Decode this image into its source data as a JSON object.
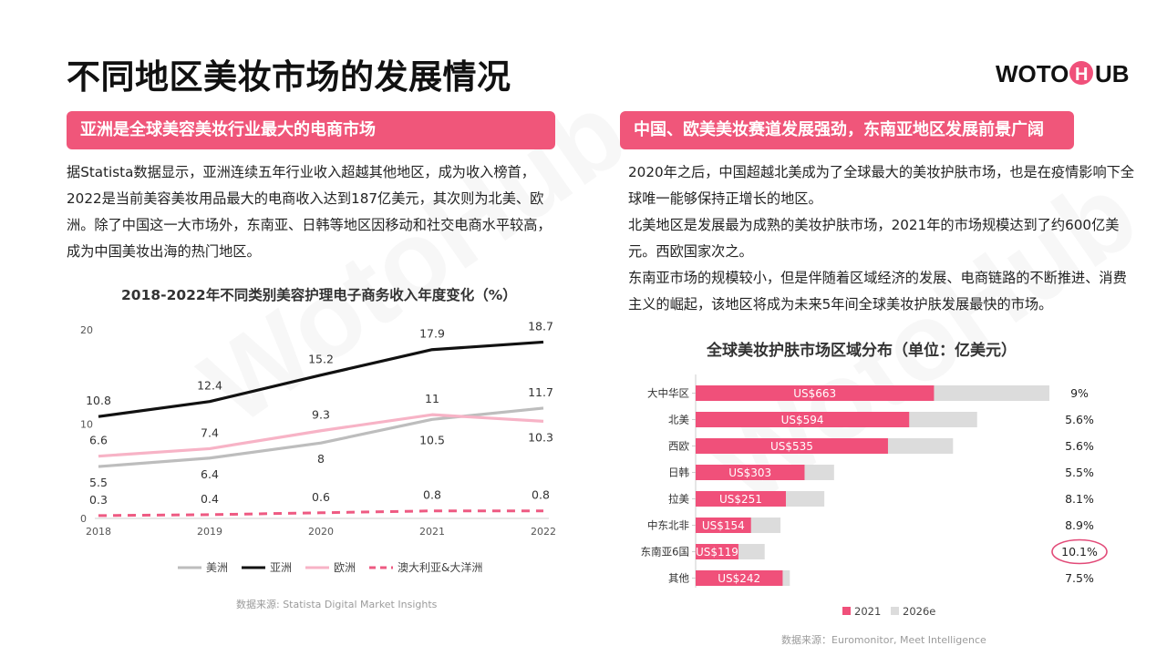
{
  "page": {
    "title": "不同地区美妆市场的发展情况",
    "logo_text": "WOTOHUB"
  },
  "left": {
    "banner": "亚洲是全球美容美妆行业最大的电商市场",
    "paragraph": "据Statista数据显示，亚洲连续五年行业收入超越其他地区，成为收入榜首，2022是当前美容美妆用品最大的电商收入达到187亿美元，其次则为北美、欧洲。除了中国这一大市场外，东南亚、日韩等地区因移动和社交电商水平较高，成为中国美妆出海的热门地区。",
    "chart_title": "2018-2022年不同类别美容护理电子商务收入年度变化（%）",
    "source": "数据来源: Statista Digital Market Insights"
  },
  "right": {
    "banner": "中国、欧美美妆赛道发展强劲，东南亚地区发展前景广阔",
    "paragraphs": [
      "2020年之后，中国超越北美成为了全球最大的美妆护肤市场，也是在疫情影响下全球唯一能够保持正增长的地区。",
      "北美地区是发展最为成熟的美妆护肤市场，2021年的市场规模达到了约600亿美元。西欧国家次之。",
      "东南亚市场的规模较小，但是伴随着区域经济的发展、电商链路的不断推进、消费主义的崛起，该地区将成为未来5年间全球美妆护肤发展最快的市场。"
    ],
    "chart_title": "全球美妆护肤市场区域分布（单位：亿美元）",
    "source": "数据来源：Euromonitor, Meet Intelligence"
  },
  "chart_data": [
    {
      "type": "line",
      "title": "2018-2022年不同类别美容护理电子商务收入年度变化（%）",
      "x": [
        "2018",
        "2019",
        "2020",
        "2021",
        "2022"
      ],
      "yticks": [
        0,
        10,
        20
      ],
      "ylim": [
        0,
        20
      ],
      "grid": false,
      "legend": "bottom",
      "series": [
        {
          "name": "美洲",
          "values": [
            5.5,
            6.4,
            8,
            10.5,
            11.7
          ],
          "color": "#bdbdbd",
          "style": "solid"
        },
        {
          "name": "亚洲",
          "values": [
            10.8,
            12.4,
            15.2,
            17.9,
            18.7
          ],
          "color": "#111111",
          "style": "solid"
        },
        {
          "name": "欧洲",
          "values": [
            6.6,
            7.4,
            9.3,
            11,
            10.3
          ],
          "color": "#f7b3c6",
          "style": "solid"
        },
        {
          "name": "澳大利亚&大洋洲",
          "values": [
            0.3,
            0.4,
            0.6,
            0.8,
            0.8
          ],
          "color": "#ee5a82",
          "style": "dashed"
        }
      ]
    },
    {
      "type": "bar",
      "orientation": "horizontal",
      "stacked": true,
      "title": "全球美妆护肤市场区域分布（单位：亿美元）",
      "categories": [
        "大中华区",
        "北美",
        "西欧",
        "日韩",
        "拉美",
        "中东北非",
        "东南亚6国",
        "其他"
      ],
      "series": [
        {
          "name": "2021",
          "values": [
            663,
            594,
            535,
            303,
            251,
            154,
            119,
            242
          ],
          "color": "#f0507a"
        },
        {
          "name": "2026e",
          "values": [
            984,
            783,
            716,
            385,
            358,
            236,
            192,
            262
          ],
          "color": "#dcdcdc"
        }
      ],
      "bar_labels": [
        "US$663",
        "US$594",
        "US$535",
        "US$303",
        "US$251",
        "US$154",
        "US$119",
        "US$242"
      ],
      "growth": [
        "9%",
        "5.6%",
        "5.6%",
        "5.5%",
        "8.1%",
        "8.9%",
        "10.1%",
        "7.5%"
      ],
      "highlight": "10.1%",
      "legend": "bottom"
    }
  ]
}
